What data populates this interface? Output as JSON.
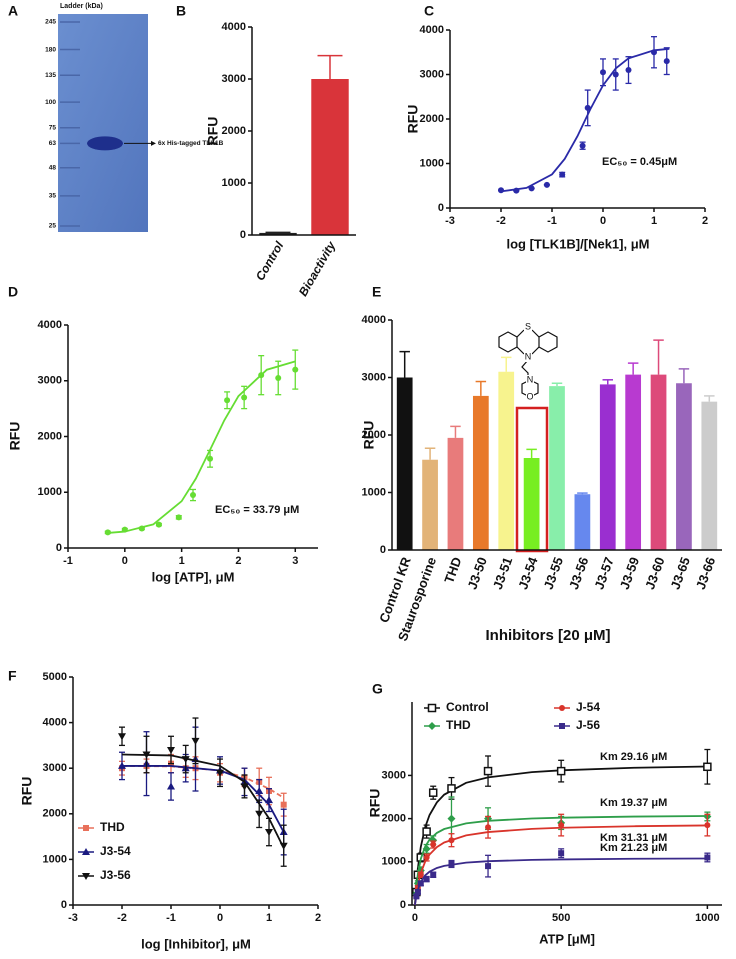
{
  "chart_data": [
    {
      "panel": "A",
      "type": "gel",
      "title": "Ladder (kDa)",
      "yscale": "log",
      "ladder": [
        245,
        180,
        135,
        100,
        75,
        63,
        48,
        35,
        25
      ],
      "band": 63,
      "annotation": "6x His-tagged TLK1B"
    },
    {
      "panel": "B",
      "type": "bar",
      "ylabel": "RFU",
      "categories": [
        "Control",
        "Bioactivity"
      ],
      "values": [
        40,
        3000
      ],
      "errors": [
        10,
        450
      ],
      "colors": [
        "#222222",
        "#d9343a"
      ],
      "ylim": [
        0,
        4000
      ],
      "yticks": [
        0,
        1000,
        2000,
        3000,
        4000
      ],
      "label_style": "italic"
    },
    {
      "panel": "C",
      "type": "xy",
      "ylabel": "RFU",
      "xlabel": "log [TLK1B]/[Nek1], μM",
      "xlim": [
        -3,
        2
      ],
      "xticks": [
        -3,
        -2,
        -1,
        0,
        1,
        2
      ],
      "ylim": [
        0,
        4000
      ],
      "yticks": [
        0,
        1000,
        2000,
        3000,
        4000
      ],
      "annotations": [
        "EC₅₀ = 0.45μM"
      ],
      "series": [
        {
          "color": "#2a2aa8",
          "marker": "circle",
          "x": [
            -2,
            -1.7,
            -1.4,
            -1.1,
            -0.8,
            -0.4,
            -0.3,
            0,
            0.25,
            0.5,
            1,
            1.25
          ],
          "values": [
            400,
            390,
            440,
            520,
            750,
            1400,
            2250,
            3050,
            3000,
            3100,
            3500,
            3300
          ],
          "errors": [
            0,
            0,
            0,
            0,
            50,
            80,
            400,
            300,
            350,
            300,
            350,
            300
          ],
          "fit_x": [
            -2,
            -1.5,
            -1,
            -0.75,
            -0.5,
            -0.25,
            0,
            0.25,
            0.5,
            1,
            1.3
          ],
          "fit_values": [
            373,
            451,
            756,
            1104,
            1616,
            2217,
            2756,
            3137,
            3363,
            3544,
            3577
          ]
        }
      ]
    },
    {
      "panel": "D",
      "type": "xy",
      "ylabel": "RFU",
      "xlabel": "log [ATP], μM",
      "xlim": [
        -1,
        3.4
      ],
      "xticks": [
        -1,
        0,
        1,
        2,
        3
      ],
      "ylim": [
        0,
        4000
      ],
      "yticks": [
        0,
        1000,
        2000,
        3000,
        4000
      ],
      "annotations": [
        "EC₅₀ = 33.79 μM"
      ],
      "series": [
        {
          "color": "#66dd33",
          "marker": "circle",
          "x": [
            -0.3,
            0,
            0.3,
            0.6,
            0.95,
            1.2,
            1.5,
            1.8,
            2.1,
            2.4,
            2.7,
            3
          ],
          "values": [
            280,
            330,
            350,
            420,
            550,
            950,
            1600,
            2650,
            2700,
            3100,
            3050,
            3200
          ],
          "errors": [
            20,
            20,
            20,
            20,
            30,
            100,
            150,
            150,
            200,
            350,
            300,
            350
          ],
          "fit_x": [
            -0.3,
            0,
            0.5,
            1,
            1.25,
            1.5,
            1.75,
            2,
            2.5,
            3
          ],
          "fit_values": [
            270,
            295,
            423,
            840,
            1244,
            1760,
            2289,
            2725,
            3198,
            3347
          ]
        }
      ]
    },
    {
      "panel": "E",
      "type": "bar",
      "ylabel": "RFU",
      "xlabel": "Inhibitors [20 μM]",
      "structure_atoms": [
        "S",
        "N",
        "N",
        "O"
      ],
      "categories": [
        "Control KR",
        "Staurosporine",
        "THD",
        "J3-50",
        "J3-51",
        "J3-54",
        "J3-55",
        "J3-56",
        "J3-57",
        "J3-59",
        "J3-60",
        "J3-65",
        "J3-66"
      ],
      "values": [
        3000,
        1570,
        1950,
        2680,
        3100,
        1600,
        2850,
        970,
        2880,
        3050,
        3050,
        2900,
        2580
      ],
      "errors": [
        450,
        200,
        200,
        250,
        250,
        150,
        50,
        20,
        80,
        200,
        600,
        250,
        100
      ],
      "colors": [
        "#111111",
        "#e2b378",
        "#e87b7b",
        "#e8792a",
        "#f7f38e",
        "#77ee22",
        "#88eeaa",
        "#6688ee",
        "#9a2fd0",
        "#b83ad0",
        "#dd4a7a",
        "#9966bb",
        "#cccccc"
      ],
      "ylim": [
        0,
        4000
      ],
      "yticks": [
        0,
        1000,
        2000,
        3000,
        4000
      ],
      "label_style": "normal"
    },
    {
      "panel": "F",
      "type": "xy",
      "ylabel": "RFU",
      "xlabel": "log [Inhibitor], μM",
      "xlim": [
        -3,
        2
      ],
      "xticks": [
        -3,
        -2,
        -1,
        0,
        1,
        2
      ],
      "ylim": [
        0,
        5000
      ],
      "yticks": [
        0,
        1000,
        2000,
        3000,
        4000,
        5000
      ],
      "legend": "lower left",
      "series": [
        {
          "name": "THD",
          "color": "#e8705a",
          "marker": "square",
          "dashed": true,
          "x": [
            -2,
            -1.5,
            -1,
            -0.7,
            -0.5,
            0,
            0.5,
            0.8,
            1,
            1.3
          ],
          "values": [
            3000,
            3050,
            3100,
            3000,
            3000,
            2900,
            2800,
            2700,
            2500,
            2200
          ],
          "errors": [
            150,
            150,
            200,
            200,
            250,
            200,
            200,
            300,
            300,
            250
          ],
          "fit_x": [
            -2,
            -1,
            0,
            0.5,
            1,
            1.3
          ],
          "fit_values": [
            3050,
            3040,
            2950,
            2800,
            2550,
            2350
          ]
        },
        {
          "name": "J3-54",
          "color": "#1a1a80",
          "marker": "triangle",
          "x": [
            -2,
            -1.5,
            -1,
            -0.7,
            -0.5,
            0,
            0.5,
            0.8,
            1,
            1.3
          ],
          "values": [
            3050,
            3100,
            2600,
            3000,
            3200,
            2950,
            2700,
            2500,
            2300,
            1600
          ],
          "errors": [
            300,
            700,
            300,
            300,
            700,
            300,
            300,
            250,
            250,
            500
          ],
          "fit_x": [
            -2,
            -1,
            0,
            0.5,
            1,
            1.3
          ],
          "fit_values": [
            3050,
            3050,
            2950,
            2750,
            2200,
            1600
          ]
        },
        {
          "name": "J3-56",
          "color": "#111111",
          "marker": "triangle-down",
          "x": [
            -2,
            -1.5,
            -1,
            -0.7,
            -0.5,
            0,
            0.5,
            0.8,
            1,
            1.3
          ],
          "values": [
            3700,
            3300,
            3400,
            3200,
            3600,
            2900,
            2600,
            2000,
            1600,
            1300
          ],
          "errors": [
            200,
            400,
            300,
            300,
            500,
            300,
            250,
            300,
            300,
            450
          ],
          "fit_x": [
            -2,
            -1,
            0,
            0.5,
            1,
            1.3
          ],
          "fit_values": [
            3300,
            3280,
            3050,
            2700,
            1900,
            1250
          ]
        }
      ]
    },
    {
      "panel": "G",
      "type": "xy",
      "ylabel": "RFU",
      "xlabel": "ATP [μM]",
      "xlim": [
        -10,
        1050
      ],
      "xticks": [
        0,
        500,
        1000
      ],
      "ylim": [
        0,
        4700
      ],
      "yticks": [
        0,
        1000,
        2000,
        3000
      ],
      "legend": "upper",
      "annotations": [
        "Km 29.16 μM",
        "Km 19.37 μM",
        "Km 31.31 μM",
        "Km 21.23 μM"
      ],
      "series": [
        {
          "name": "Control",
          "color": "#111111",
          "marker": "open-square",
          "x": [
            5,
            10,
            20,
            40,
            62.5,
            125,
            250,
            500,
            1000
          ],
          "values": [
            300,
            700,
            1100,
            1700,
            2600,
            2700,
            3100,
            3100,
            3200
          ],
          "errors": [
            60,
            80,
            100,
            150,
            150,
            250,
            350,
            250,
            400
          ],
          "fit_x": [
            0,
            5,
            10,
            20,
            35,
            50,
            75,
            100,
            175,
            250,
            400,
            500,
            750,
            1000
          ],
          "fit_values": [
            0,
            483,
            843,
            1343,
            1800,
            2084,
            2376,
            2555,
            2829,
            2955,
            3076,
            3118,
            3177,
            3207
          ]
        },
        {
          "name": "THD",
          "color": "#2e9e4a",
          "marker": "diamond",
          "x": [
            5,
            10,
            20,
            40,
            62.5,
            125,
            250,
            500,
            1000
          ],
          "values": [
            250,
            500,
            800,
            1300,
            1500,
            2000,
            2000,
            1900,
            2050
          ],
          "errors": [
            40,
            60,
            80,
            100,
            100,
            500,
            250,
            150,
            100
          ],
          "fit_x": [
            0,
            5,
            10,
            20,
            35,
            50,
            75,
            100,
            175,
            250,
            400,
            500,
            750,
            1000
          ],
          "fit_values": [
            0,
            431,
            715,
            1067,
            1352,
            1514,
            1669,
            1759,
            1891,
            1949,
            2003,
            2022,
            2047,
            2060
          ]
        },
        {
          "name": "J-54",
          "color": "#d9342b",
          "marker": "circle",
          "x": [
            5,
            10,
            20,
            40,
            62.5,
            125,
            250,
            500,
            1000
          ],
          "values": [
            200,
            400,
            700,
            1100,
            1400,
            1500,
            1800,
            1850,
            1850
          ],
          "errors": [
            40,
            50,
            60,
            80,
            80,
            150,
            250,
            250,
            250
          ],
          "fit_x": [
            0,
            5,
            10,
            20,
            35,
            50,
            75,
            100,
            175,
            250,
            400,
            500,
            750,
            1000
          ],
          "fit_values": [
            0,
            262,
            460,
            741,
            1003,
            1168,
            1340,
            1447,
            1612,
            1689,
            1762,
            1788,
            1824,
            1842
          ]
        },
        {
          "name": "J-56",
          "color": "#3a2a8a",
          "marker": "square",
          "x": [
            5,
            10,
            20,
            40,
            62.5,
            125,
            250,
            500,
            1000
          ],
          "values": [
            200,
            300,
            500,
            600,
            700,
            950,
            900,
            1200,
            1100
          ],
          "errors": [
            30,
            40,
            50,
            60,
            60,
            80,
            250,
            100,
            100
          ],
          "fit_x": [
            0,
            5,
            10,
            20,
            35,
            50,
            75,
            100,
            175,
            250,
            400,
            500,
            750,
            1000
          ],
          "fit_values": [
            0,
            210,
            352,
            534,
            685,
            772,
            857,
            907,
            981,
            1014,
            1045,
            1055,
            1070,
            1077
          ]
        }
      ]
    }
  ]
}
